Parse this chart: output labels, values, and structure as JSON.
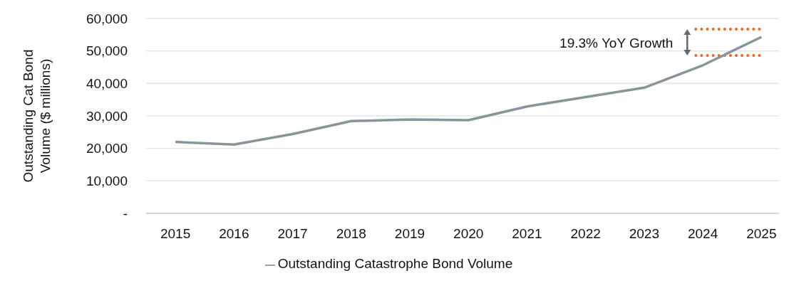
{
  "chart_data": {
    "type": "line",
    "ylabel": "Outstanding Cat Bond Volume ($ millions)",
    "categories": [
      "2015",
      "2016",
      "2017",
      "2018",
      "2019",
      "2020",
      "2021",
      "2022",
      "2023",
      "2024",
      "2025"
    ],
    "series": [
      {
        "name": "Outstanding Catastrophe Bond Volume",
        "color": "#87959b",
        "values": [
          22000,
          21200,
          24400,
          28400,
          28900,
          28700,
          32900,
          35800,
          38700,
          45600,
          54300
        ]
      }
    ],
    "ylim": [
      0,
      60000
    ],
    "yticks": [
      {
        "value": 0,
        "label": "-"
      },
      {
        "value": 10000,
        "label": "10,000"
      },
      {
        "value": 20000,
        "label": "20,000"
      },
      {
        "value": 30000,
        "label": "30,000"
      },
      {
        "value": 40000,
        "label": "40,000"
      },
      {
        "value": 50000,
        "label": "50,000"
      },
      {
        "value": 60000,
        "label": "60,000"
      }
    ],
    "ref_lines": [
      {
        "axis": "y",
        "value": 56700,
        "color": "#f26522",
        "line_style": "dotted"
      },
      {
        "axis": "y",
        "value": 48600,
        "color": "#f26522",
        "line_style": "dotted"
      }
    ],
    "annotations": [
      "19.3% YoY Growth"
    ],
    "grid": "y",
    "legend": "bottom",
    "marker": "none",
    "line_style": "solid"
  }
}
